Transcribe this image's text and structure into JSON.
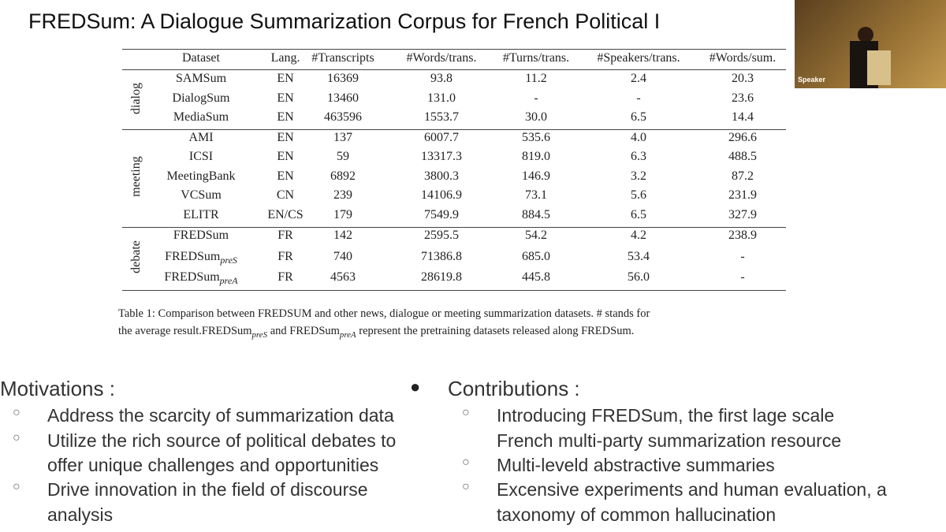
{
  "title": "FREDSum: A Dialogue Summarization Corpus for French Political I",
  "speaker": {
    "label": "Speaker"
  },
  "table": {
    "header": [
      "Dataset",
      "Lang.",
      "#Transcripts",
      "#Words/trans.",
      "#Turns/trans.",
      "#Speakers/trans.",
      "#Words/sum."
    ],
    "groups": [
      {
        "label": "dialog",
        "rows": [
          [
            {
              "text": "SAMSum"
            },
            "EN",
            "16369",
            "93.8",
            "11.2",
            "2.4",
            "20.3"
          ],
          [
            {
              "text": "DialogSum"
            },
            "EN",
            "13460",
            "131.0",
            "-",
            "-",
            "23.6"
          ],
          [
            {
              "text": "MediaSum"
            },
            "EN",
            "463596",
            "1553.7",
            "30.0",
            "6.5",
            "14.4"
          ]
        ]
      },
      {
        "label": "meeting",
        "rows": [
          [
            {
              "text": "AMI"
            },
            "EN",
            "137",
            "6007.7",
            "535.6",
            "4.0",
            "296.6"
          ],
          [
            {
              "text": "ICSI"
            },
            "EN",
            "59",
            "13317.3",
            "819.0",
            "6.3",
            "488.5"
          ],
          [
            {
              "text": "MeetingBank"
            },
            "EN",
            "6892",
            "3800.3",
            "146.9",
            "3.2",
            "87.2"
          ],
          [
            {
              "text": "VCSum"
            },
            "CN",
            "239",
            "14106.9",
            "73.1",
            "5.6",
            "231.9"
          ],
          [
            {
              "text": "ELITR"
            },
            "EN/CS",
            "179",
            "7549.9",
            "884.5",
            "6.5",
            "327.9"
          ]
        ]
      },
      {
        "label": "debate",
        "rows": [
          [
            {
              "text": "FREDSum"
            },
            "FR",
            "142",
            "2595.5",
            "54.2",
            "4.2",
            "238.9"
          ],
          [
            {
              "text": "FREDSum",
              "sub": "preS"
            },
            "FR",
            "740",
            "71386.8",
            "685.0",
            "53.4",
            "-"
          ],
          [
            {
              "text": "FREDSum",
              "sub": "preA"
            },
            "FR",
            "4563",
            "28619.8",
            "445.8",
            "56.0",
            "-"
          ]
        ]
      }
    ],
    "caption": [
      [
        {
          "text": "Table 1: Comparison between FREDSUM and other news, dialogue or meeting summarization datasets. # stands for"
        }
      ],
      [
        {
          "text": "the average result.FREDSum"
        },
        {
          "sub": "preS"
        },
        {
          "text": " and FREDSum"
        },
        {
          "sub": "preA"
        },
        {
          "text": " represent the pretraining datasets released along FREDSum."
        }
      ]
    ]
  },
  "motivations": {
    "heading": "Motivations :",
    "items": [
      [
        "Address the scarcity of summarization data"
      ],
      [
        "Utilize the rich source of political debates to",
        "offer unique challenges and opportunities"
      ],
      [
        "Drive innovation in the field of discourse",
        "analysis"
      ]
    ]
  },
  "contributions": {
    "heading": "Contributions :",
    "items": [
      [
        "Introducing FREDSum, the first lage scale",
        "French multi-party summarization resource"
      ],
      [
        "Multi-leveld abstractive summaries"
      ],
      [
        "Excensive experiments and human evaluation, a",
        "taxonomy of common hallucination"
      ]
    ]
  }
}
